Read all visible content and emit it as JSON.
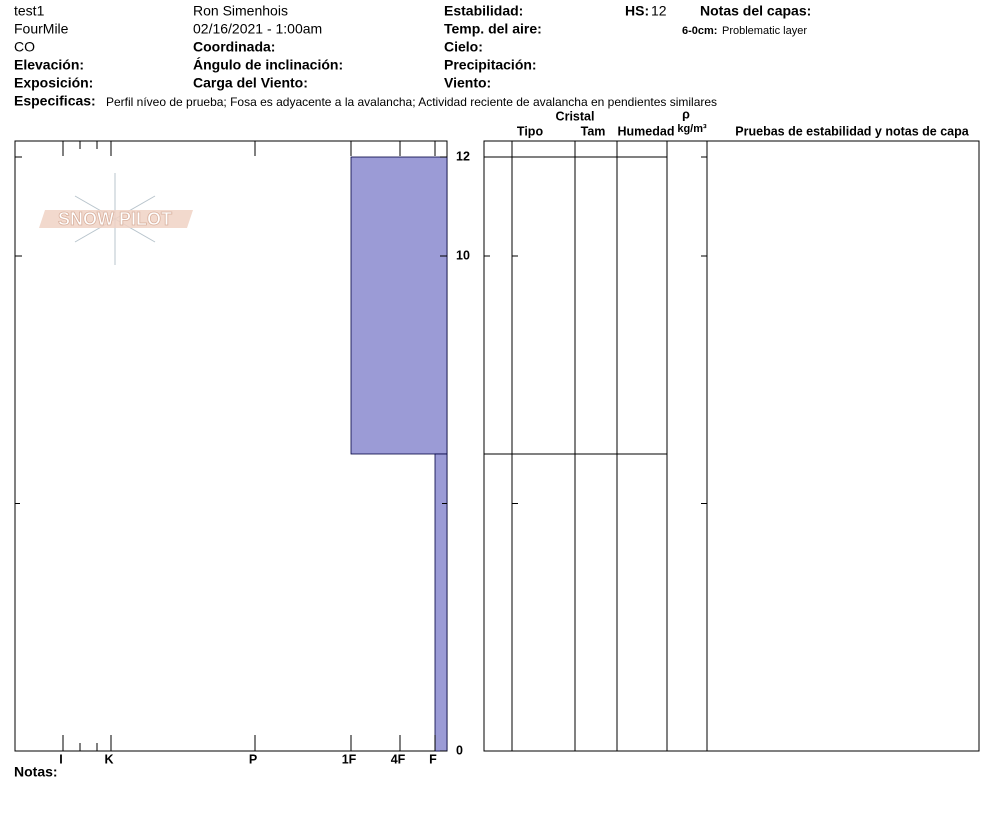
{
  "header": {
    "site": "test1",
    "observer": "Ron Simenhois",
    "stability_label": "Estabilidad:",
    "hs_label": "HS:",
    "hs_value": 12,
    "layer_notes_label": "Notas del capas:",
    "location": "FourMile",
    "datetime": "02/16/2021 - 1:00am",
    "air_temp_label": "Temp. del aire:",
    "layer_note_range": "6-0cm:",
    "layer_note_text": "Problematic layer",
    "state": "CO",
    "coord_label": "Coordinada:",
    "sky_label": "Cielo:",
    "elevation_label": "Elevación:",
    "slope_label": "Ángulo de inclinación:",
    "precip_label": "Precipitación:",
    "aspect_label": "Exposición:",
    "wind_load_label": "Carga del Viento:",
    "wind_label": "Viento:",
    "specifics_label": "Especificas:",
    "specifics_text": "Perfil níveo de prueba; Fosa es adyacente a la avalancha; Actividad reciente de avalancha en pendientes similares"
  },
  "logo": "SNOW PILOT",
  "chart_data": {
    "type": "snow-profile",
    "hardness_scale": [
      "I",
      "K",
      "P",
      "1F",
      "4F",
      "F"
    ],
    "ylim": [
      0,
      12
    ],
    "yticks": [
      0,
      10,
      12
    ],
    "minor_yticks": [
      5
    ],
    "color": "#9b9bd6",
    "layers": [
      {
        "top": 12,
        "bottom": 6,
        "hardness": "1F"
      },
      {
        "top": 6,
        "bottom": 0,
        "hardness": "F"
      }
    ]
  },
  "table": {
    "crystal": "Cristal",
    "type": "Tipo",
    "size": "Tam",
    "moisture": "Humedad",
    "rho": "ρ",
    "density_unit": "kg/m³",
    "tests": "Pruebas de estabilidad y notas de capa"
  },
  "notes_label": "Notas:"
}
